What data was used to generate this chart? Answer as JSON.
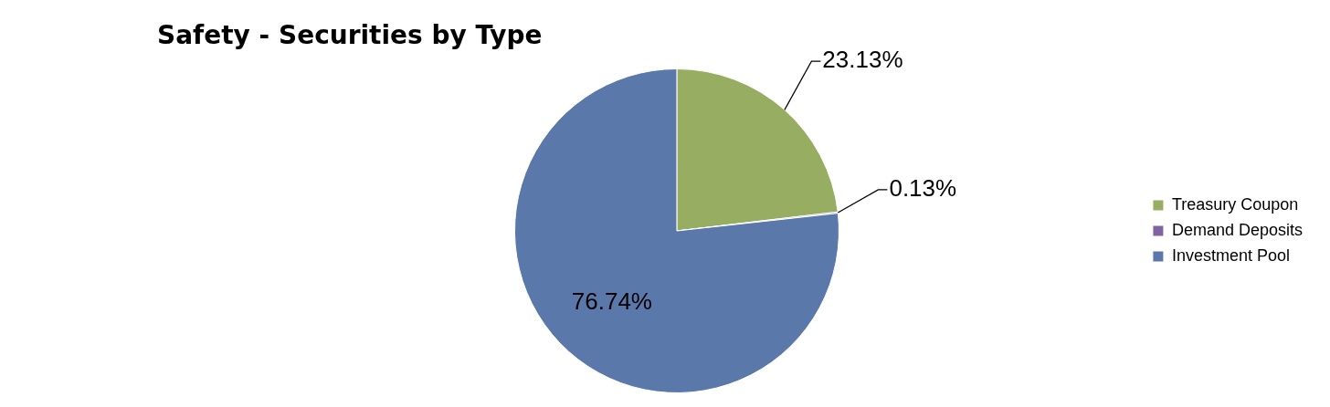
{
  "chart_data": {
    "type": "pie",
    "title": "Safety - Securities by Type",
    "categories": [
      "Treasury Coupon",
      "Demand Deposits",
      "Investment Pool"
    ],
    "values": [
      23.13,
      0.13,
      76.74
    ],
    "colors": [
      "#97ad62",
      "#8064a2",
      "#5b78aa"
    ],
    "value_labels": [
      "23.13%",
      "0.13%",
      "76.74%"
    ],
    "legend": "right"
  }
}
